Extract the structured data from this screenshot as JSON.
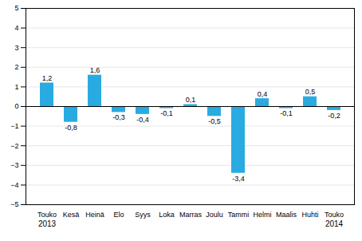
{
  "chart_data": {
    "type": "bar",
    "categories": [
      "Touko",
      "Kesä",
      "Heinä",
      "Elo",
      "Syys",
      "Loka",
      "Marras",
      "Joulu",
      "Tammi",
      "Helmi",
      "Maalis",
      "Huhti",
      "Touko"
    ],
    "values": [
      1.2,
      -0.8,
      1.6,
      -0.3,
      -0.4,
      -0.1,
      0.1,
      -0.5,
      -3.4,
      0.4,
      -0.1,
      0.5,
      -0.2
    ],
    "value_labels": [
      "1,2",
      "-0,8",
      "1,6",
      "-0,3",
      "-0,4",
      "-0,1",
      "0,1",
      "-0,5",
      "-3,4",
      "0,4",
      "-0,1",
      "0,5",
      "-0,2"
    ],
    "data_labels": true,
    "color": "#29abe2",
    "ylim": [
      -5,
      5
    ],
    "yticks": [
      -5,
      -4,
      -3,
      -2,
      -1,
      0,
      1,
      2,
      3,
      4,
      5
    ],
    "grid": true,
    "annotations": [
      {
        "text": "2013",
        "at": 0
      },
      {
        "text": "2014",
        "at": 12
      }
    ]
  }
}
